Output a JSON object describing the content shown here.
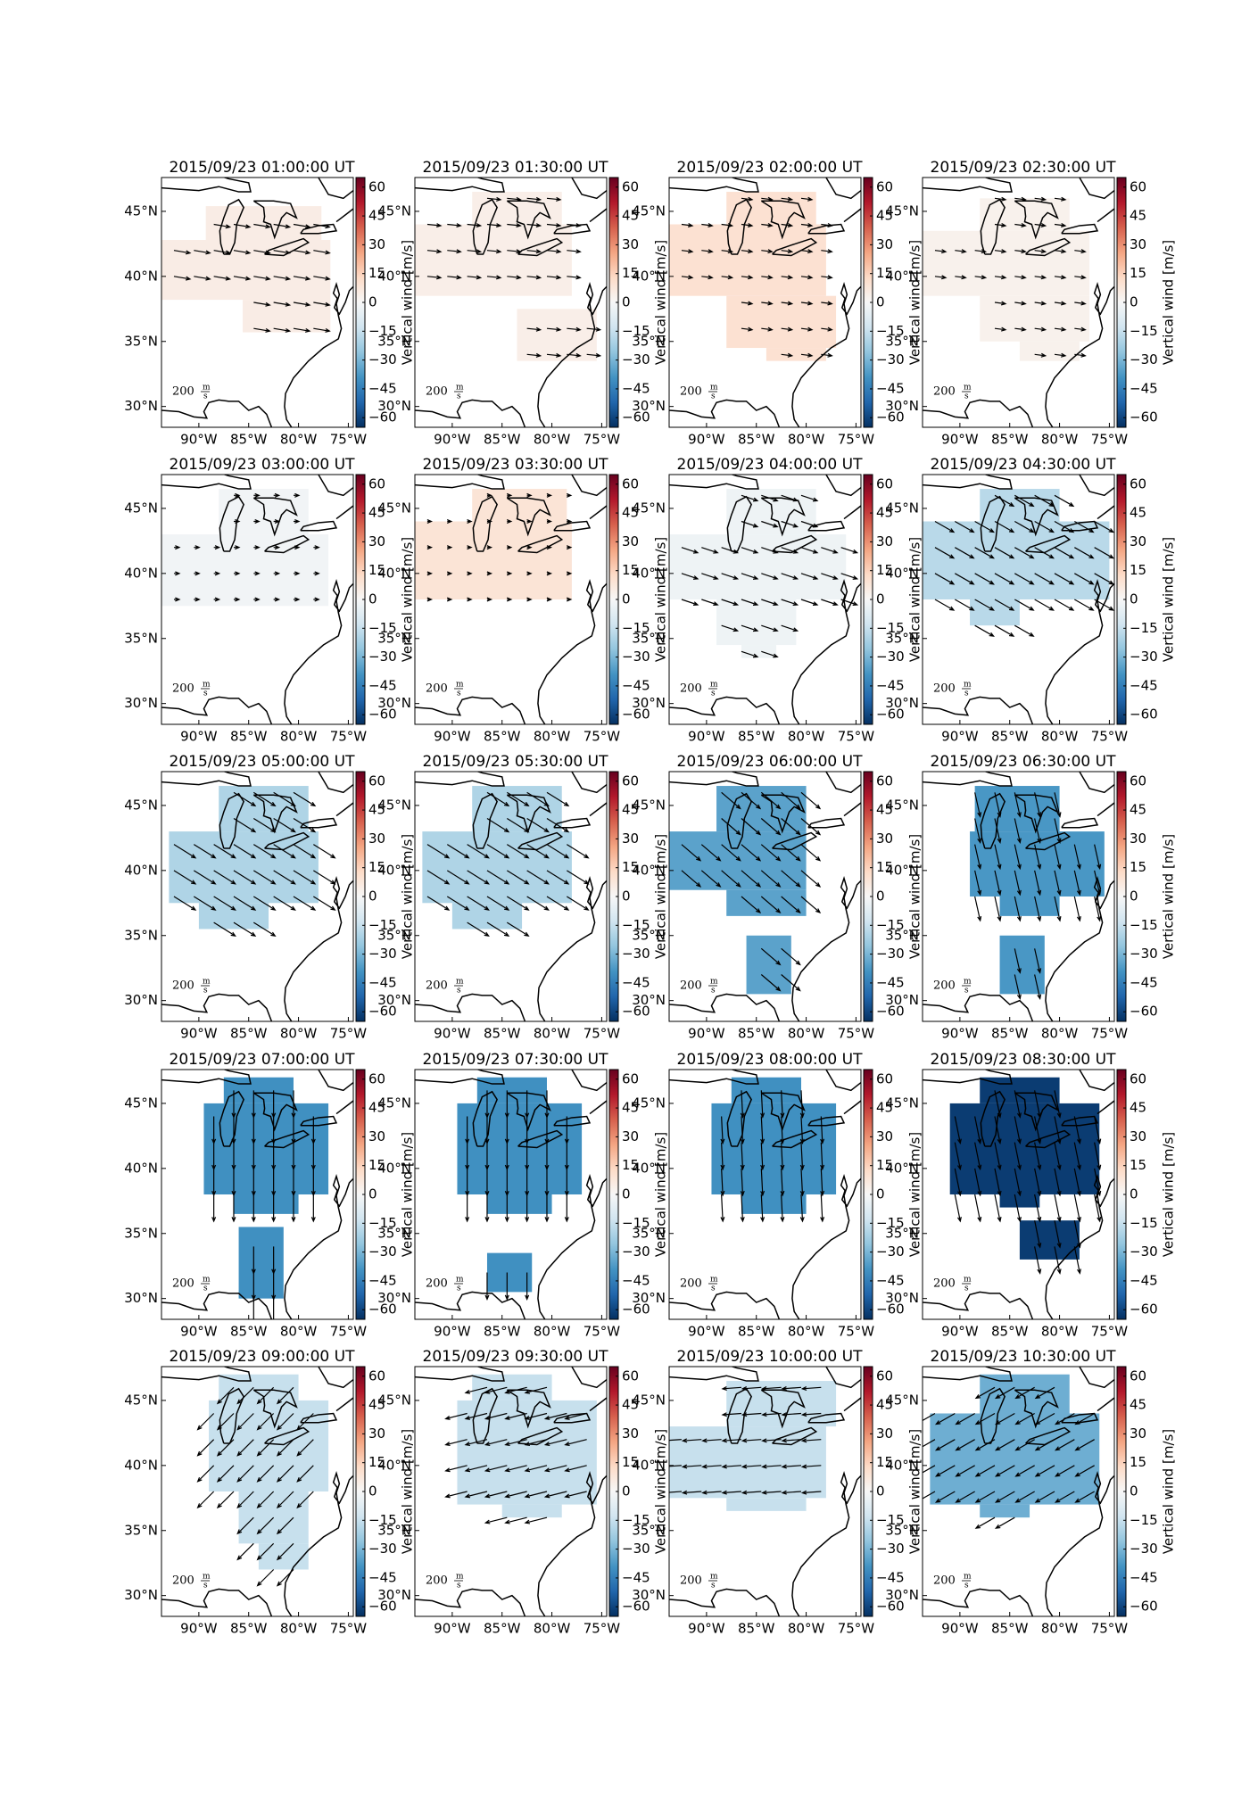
{
  "panels": [
    {
      "title": "2015/09/23 01:00:00 UT",
      "vertical_wind": 5,
      "u": 60,
      "v": -10
    },
    {
      "title": "2015/09/23 01:30:00 UT",
      "vertical_wind": 4,
      "u": 50,
      "v": -5
    },
    {
      "title": "2015/09/23 02:00:00 UT",
      "vertical_wind": 10,
      "u": 40,
      "v": -5
    },
    {
      "title": "2015/09/23 02:30:00 UT",
      "vertical_wind": 3,
      "u": 40,
      "v": -5
    },
    {
      "title": "2015/09/23 03:00:00 UT",
      "vertical_wind": -2,
      "u": 20,
      "v": 0
    },
    {
      "title": "2015/09/23 03:30:00 UT",
      "vertical_wind": 9,
      "u": 15,
      "v": 0
    },
    {
      "title": "2015/09/23 04:00:00 UT",
      "vertical_wind": -3,
      "u": 60,
      "v": -20
    },
    {
      "title": "2015/09/23 04:30:00 UT",
      "vertical_wind": -18,
      "u": 70,
      "v": -40
    },
    {
      "title": "2015/09/23 05:00:00 UT",
      "vertical_wind": -20,
      "u": 80,
      "v": -50
    },
    {
      "title": "2015/09/23 05:30:00 UT",
      "vertical_wind": -20,
      "u": 80,
      "v": -50
    },
    {
      "title": "2015/09/23 06:00:00 UT",
      "vertical_wind": -35,
      "u": 70,
      "v": -60
    },
    {
      "title": "2015/09/23 06:30:00 UT",
      "vertical_wind": -38,
      "u": 20,
      "v": -90
    },
    {
      "title": "2015/09/23 07:00:00 UT",
      "vertical_wind": -40,
      "u": 0,
      "v": -100
    },
    {
      "title": "2015/09/23 07:30:00 UT",
      "vertical_wind": -40,
      "u": 0,
      "v": -100
    },
    {
      "title": "2015/09/23 08:00:00 UT",
      "vertical_wind": -40,
      "u": 5,
      "v": -100
    },
    {
      "title": "2015/09/23 08:30:00 UT",
      "vertical_wind": -62,
      "u": 20,
      "v": -100
    },
    {
      "title": "2015/09/23 09:00:00 UT",
      "vertical_wind": -15,
      "u": -60,
      "v": -60
    },
    {
      "title": "2015/09/23 09:30:00 UT",
      "vertical_wind": -15,
      "u": -80,
      "v": -20
    },
    {
      "title": "2015/09/23 10:00:00 UT",
      "vertical_wind": -15,
      "u": -70,
      "v": -5
    },
    {
      "title": "2015/09/23 10:30:00 UT",
      "vertical_wind": -32,
      "u": -70,
      "v": -40
    }
  ],
  "xlim": [
    -93.75,
    -74.5
  ],
  "ylim": [
    28.4,
    47.6
  ],
  "xticks": [
    {
      "value": -90,
      "label": "90°W"
    },
    {
      "value": -85,
      "label": "85°W"
    },
    {
      "value": -80,
      "label": "80°W"
    },
    {
      "value": -75,
      "label": "75°W"
    }
  ],
  "yticks": [
    {
      "value": 30,
      "label": "30°N"
    },
    {
      "value": 35,
      "label": "35°N"
    },
    {
      "value": 40,
      "label": "40°N"
    },
    {
      "value": 45,
      "label": "45°N"
    }
  ],
  "colorbar": {
    "label": "Vertical wind [m/s]",
    "lim": [
      -65,
      65
    ],
    "ticks": [
      {
        "value": -60,
        "label": "−60"
      },
      {
        "value": -45,
        "label": "−45"
      },
      {
        "value": -30,
        "label": "−30"
      },
      {
        "value": -15,
        "label": "−15"
      },
      0,
      15,
      30,
      45,
      60
    ],
    "colormap": [
      "#053061",
      "#2166ac",
      "#4393c3",
      "#92c5de",
      "#d1e5f0",
      "#f7f7f7",
      "#fddbc7",
      "#f4a582",
      "#d6604d",
      "#b2182b",
      "#67001f"
    ]
  },
  "reference": {
    "speed": 200,
    "unit_top": "m",
    "unit_bottom": "s"
  }
}
